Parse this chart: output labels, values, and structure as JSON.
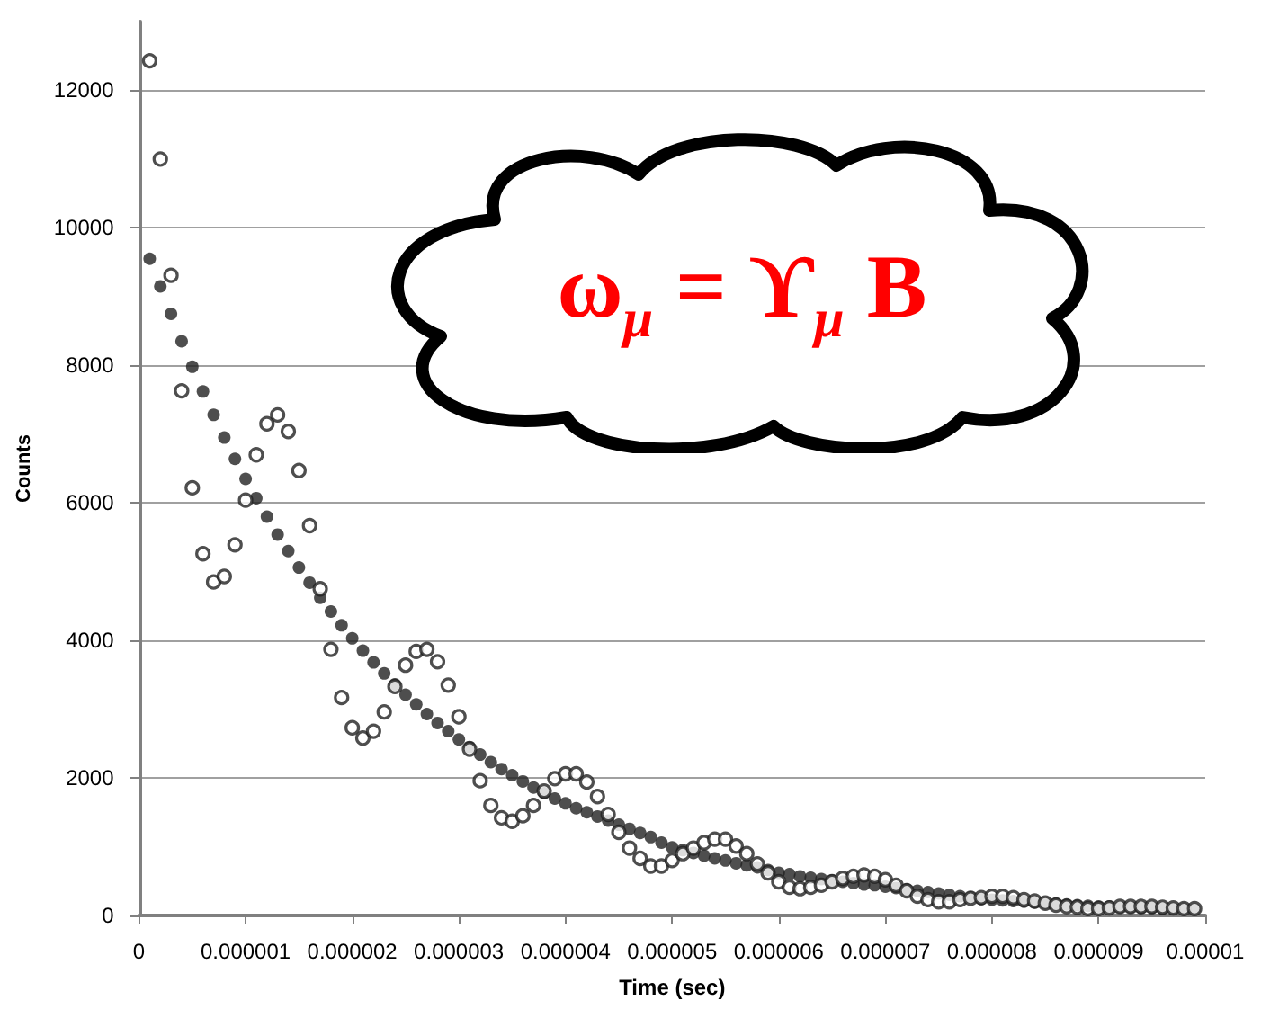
{
  "chart_data": {
    "type": "scatter",
    "xlabel": "Time (sec)",
    "ylabel": "Counts",
    "annotations": [
      "ω$_{μ}$ = ϒ$_{μ}$ B"
    ],
    "x": [
      1e-07,
      2e-07,
      3e-07,
      4e-07,
      5e-07,
      6e-07,
      7e-07,
      8e-07,
      9e-07,
      1e-06,
      1.1e-06,
      1.2e-06,
      1.3e-06,
      1.4e-06,
      1.5e-06,
      1.6e-06,
      1.7e-06,
      1.8e-06,
      1.9e-06,
      2e-06,
      2.1e-06,
      2.2e-06,
      2.3e-06,
      2.4e-06,
      2.5e-06,
      2.6e-06,
      2.7e-06,
      2.8e-06,
      2.9e-06,
      3e-06,
      3.1e-06,
      3.2e-06,
      3.3e-06,
      3.4e-06,
      3.5e-06,
      3.6e-06,
      3.7e-06,
      3.8e-06,
      3.9e-06,
      4e-06,
      4.1e-06,
      4.2e-06,
      4.3e-06,
      4.4e-06,
      4.5e-06,
      4.6e-06,
      4.7e-06,
      4.8e-06,
      4.9e-06,
      5e-06,
      5.1e-06,
      5.2e-06,
      5.3e-06,
      5.4e-06,
      5.5e-06,
      5.6e-06,
      5.7e-06,
      5.8e-06,
      5.9e-06,
      6e-06,
      6.1e-06,
      6.2e-06,
      6.3e-06,
      6.4e-06,
      6.5e-06,
      6.6e-06,
      6.7e-06,
      6.8e-06,
      6.9e-06,
      7e-06,
      7.1e-06,
      7.2e-06,
      7.3e-06,
      7.4e-06,
      7.5e-06,
      7.6e-06,
      7.7e-06,
      7.8e-06,
      7.9e-06,
      8e-06,
      8.1e-06,
      8.2e-06,
      8.3e-06,
      8.4e-06,
      8.5e-06,
      8.6e-06,
      8.7e-06,
      8.8e-06,
      8.9e-06,
      9e-06,
      9.1e-06,
      9.2e-06,
      9.3e-06,
      9.4e-06,
      9.5e-06,
      9.6e-06,
      9.7e-06,
      9.8e-06,
      9.9e-06
    ],
    "series": [
      {
        "color": "#222222",
        "values": [
          9550,
          9150,
          8750,
          8350,
          7980,
          7620,
          7280,
          6950,
          6640,
          6350,
          6070,
          5800,
          5540,
          5300,
          5060,
          4840,
          4620,
          4420,
          4220,
          4030,
          3850,
          3680,
          3520,
          3360,
          3210,
          3070,
          2930,
          2800,
          2680,
          2560,
          2450,
          2340,
          2230,
          2130,
          2040,
          1950,
          1860,
          1780,
          1700,
          1630,
          1560,
          1500,
          1440,
          1380,
          1320,
          1260,
          1200,
          1140,
          1060,
          990,
          950,
          910,
          870,
          830,
          800,
          760,
          730,
          700,
          660,
          620,
          600,
          570,
          550,
          530,
          510,
          490,
          470,
          450,
          440,
          420,
          400,
          380,
          360,
          340,
          320,
          300,
          280,
          260,
          240,
          230,
          220,
          210,
          200,
          190,
          180,
          170,
          160,
          150,
          140,
          130,
          130,
          120,
          120,
          110,
          110,
          100,
          100,
          100,
          90
        ]
      },
      {
        "color": "#222222",
        "values": [
          12430,
          11000,
          9310,
          7630,
          6220,
          5260,
          4850,
          4930,
          5390,
          6040,
          6700,
          7150,
          7280,
          7040,
          6470,
          5670,
          4750,
          3870,
          3170,
          2730,
          2580,
          2680,
          2960,
          3330,
          3640,
          3840,
          3870,
          3690,
          3350,
          2890,
          2420,
          1960,
          1600,
          1420,
          1370,
          1450,
          1600,
          1810,
          1990,
          2060,
          2060,
          1940,
          1730,
          1470,
          1210,
          980,
          830,
          720,
          720,
          800,
          900,
          980,
          1060,
          1110,
          1110,
          1010,
          900,
          750,
          620,
          490,
          410,
          390,
          410,
          440,
          490,
          540,
          570,
          590,
          570,
          520,
          440,
          360,
          280,
          230,
          200,
          200,
          230,
          250,
          260,
          280,
          280,
          260,
          230,
          210,
          180,
          150,
          130,
          120,
          100,
          100,
          110,
          130,
          130,
          130,
          130,
          120,
          110,
          100,
          100
        ]
      }
    ],
    "xlim": [
      0,
      1e-05
    ],
    "xticks": [
      0,
      {
        "value": 1e-06,
        "label": "0.000001"
      },
      {
        "value": 2e-06,
        "label": "0.000002"
      },
      {
        "value": 3e-06,
        "label": "0.000003"
      },
      {
        "value": 4e-06,
        "label": "0.000004"
      },
      {
        "value": 5e-06,
        "label": "0.000005"
      },
      {
        "value": 6e-06,
        "label": "0.000006"
      },
      {
        "value": 7e-06,
        "label": "0.000007"
      },
      {
        "value": 8e-06,
        "label": "0.000008"
      },
      {
        "value": 9e-06,
        "label": "0.000009"
      },
      {
        "value": 1e-05,
        "label": "0.00001"
      }
    ],
    "ylim": [
      0,
      13000
    ],
    "yticks": [
      0,
      2000,
      4000,
      6000,
      8000,
      10000,
      12000
    ],
    "grid": "y",
    "marker": "circle"
  }
}
